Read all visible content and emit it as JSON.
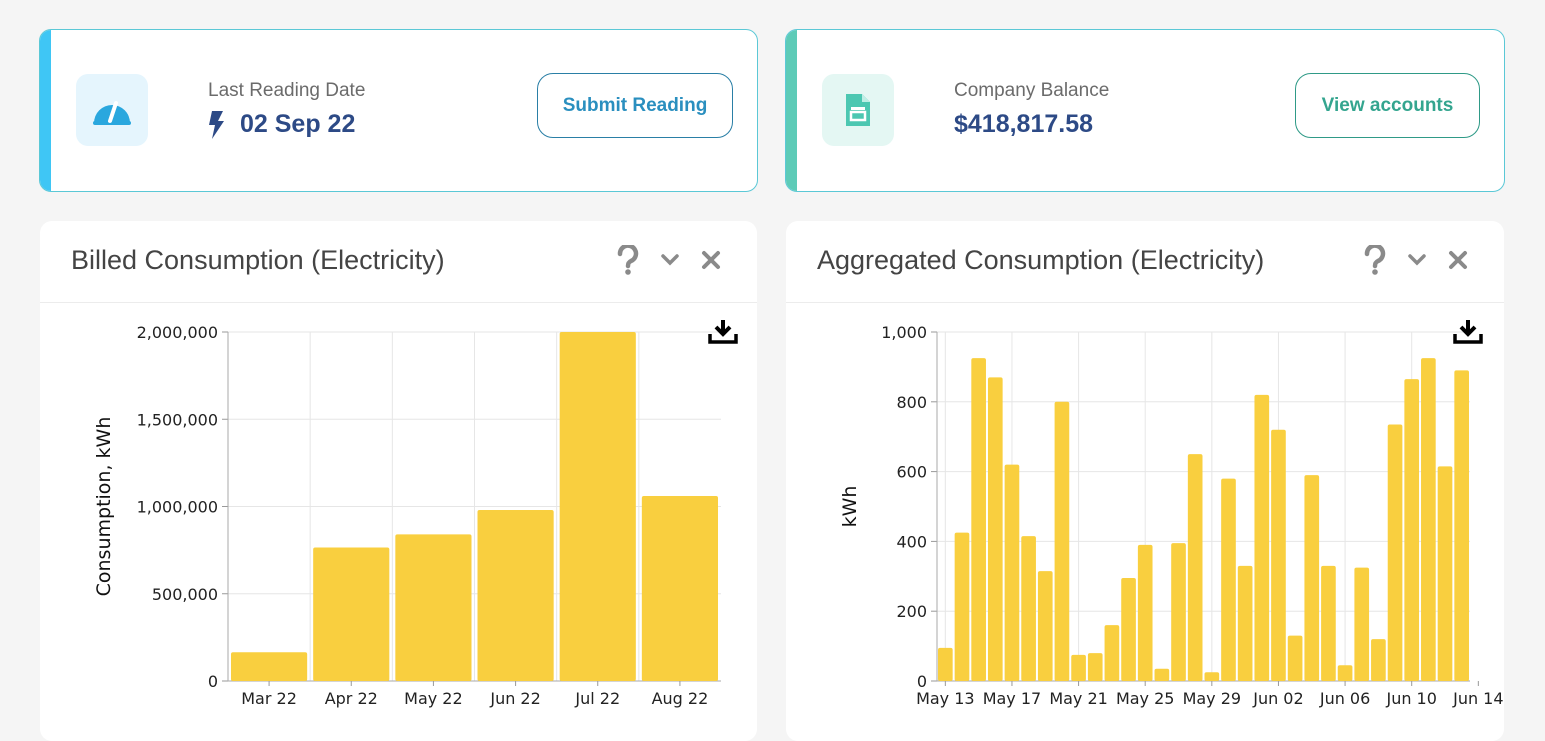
{
  "reading_card": {
    "label": "Last Reading Date",
    "value": "02 Sep 22",
    "button": "Submit Reading",
    "icon": "gauge-icon",
    "accent": "#3fc6f5"
  },
  "balance_card": {
    "label": "Company Balance",
    "value": "$418,817.58",
    "button": "View accounts",
    "icon": "document-icon",
    "accent": "#5dcbb7"
  },
  "billed_panel": {
    "title": "Billed Consumption (Electricity)",
    "chart_data": {
      "type": "bar",
      "categories": [
        "Mar 22",
        "Apr 22",
        "May 22",
        "Jun 22",
        "Jul 22",
        "Aug 22"
      ],
      "values": [
        165000,
        765000,
        840000,
        980000,
        2000000,
        1060000
      ],
      "ylabel": "Consumption, kWh",
      "ylim": [
        0,
        2000000
      ],
      "yticks": [
        0,
        500000,
        1000000,
        1500000,
        2000000
      ],
      "ytick_labels": [
        "0",
        "500,000",
        "1,000,000",
        "1,500,000",
        "2,000,000"
      ],
      "grid": true,
      "bar_color": "#f9cf3f"
    }
  },
  "aggregated_panel": {
    "title": "Aggregated Consumption (Electricity)",
    "chart_data": {
      "type": "bar",
      "x_start": "May 13",
      "values": [
        95,
        425,
        925,
        870,
        620,
        415,
        315,
        800,
        75,
        80,
        160,
        295,
        390,
        35,
        395,
        650,
        25,
        580,
        330,
        820,
        720,
        130,
        590,
        330,
        45,
        325,
        120,
        735,
        865,
        925,
        615,
        890
      ],
      "xtick_labels": [
        "May 13",
        "May 17",
        "May 21",
        "May 25",
        "May 29",
        "Jun 02",
        "Jun 06",
        "Jun 10",
        "Jun 14"
      ],
      "xtick_every": 4,
      "ylabel": "kWh",
      "ylim": [
        0,
        1000
      ],
      "yticks": [
        0,
        200,
        400,
        600,
        800,
        1000
      ],
      "ytick_labels": [
        "0",
        "200",
        "400",
        "600",
        "800",
        "1,000"
      ],
      "grid": true,
      "bar_color": "#f9cf3f"
    }
  }
}
